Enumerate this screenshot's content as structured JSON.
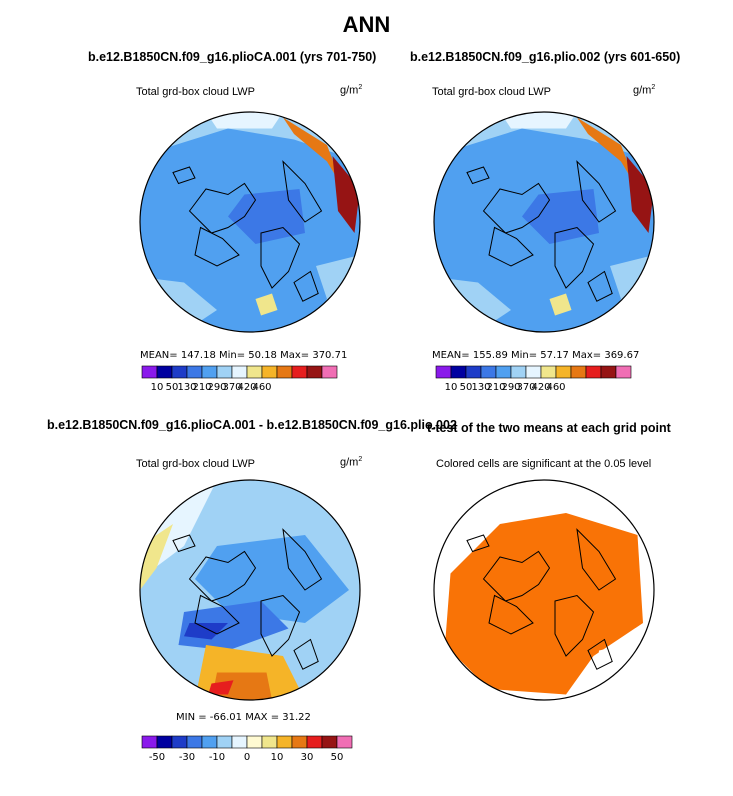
{
  "title": "ANN",
  "panels": [
    {
      "title": "b.e12.B1850CN.f09_g16.plioCA.001 (yrs 701-750)",
      "variable": "Total grd-box cloud LWP",
      "units": "g/m",
      "units_exp": "2",
      "stats": "MEAN= 147.18  Min= 50.18  Max= 370.71"
    },
    {
      "title": "b.e12.B1850CN.f09_g16.plio.002 (yrs 601-650)",
      "variable": "Total grd-box cloud LWP",
      "units": "g/m",
      "units_exp": "2",
      "stats": "MEAN= 155.89  Min= 57.17  Max= 369.67"
    },
    {
      "title": "b.e12.B1850CN.f09_g16.plioCA.001 - b.e12.B1850CN.f09_g16.plio.002",
      "variable": "Total grd-box cloud LWP",
      "units": "g/m",
      "units_exp": "2",
      "stats": "MIN = -66.01  MAX = 31.22"
    },
    {
      "title": "t-test of the two means at each grid point",
      "variable": "Colored cells are significant at the 0.05 level"
    }
  ],
  "chart_data": [
    {
      "type": "heatmap",
      "projection": "north-polar-stereographic",
      "field": "Total grd-box cloud LWP",
      "units": "g/m2",
      "stats": {
        "mean": 147.18,
        "min": 50.18,
        "max": 370.71
      },
      "colorbar": {
        "levels": [
          10,
          50,
          130,
          210,
          290,
          370,
          420,
          460
        ],
        "labels": [
          "10",
          "50",
          "130",
          "210",
          "290",
          "370",
          "420",
          "460"
        ]
      }
    },
    {
      "type": "heatmap",
      "projection": "north-polar-stereographic",
      "field": "Total grd-box cloud LWP",
      "units": "g/m2",
      "stats": {
        "mean": 155.89,
        "min": 57.17,
        "max": 369.67
      },
      "colorbar": {
        "levels": [
          10,
          50,
          130,
          210,
          290,
          370,
          420,
          460
        ],
        "labels": [
          "10",
          "50",
          "130",
          "210",
          "290",
          "370",
          "420",
          "460"
        ]
      }
    },
    {
      "type": "heatmap",
      "projection": "north-polar-stereographic",
      "field": "Total grd-box cloud LWP difference",
      "units": "g/m2",
      "stats": {
        "min": -66.01,
        "max": 31.22
      },
      "colorbar": {
        "levels": [
          -50,
          -40,
          -30,
          -20,
          -10,
          0,
          5,
          10,
          20,
          30,
          40,
          50
        ],
        "labels": [
          "-50",
          "-30",
          "-10",
          "0",
          "10",
          "30",
          "50"
        ]
      }
    },
    {
      "type": "heatmap",
      "projection": "north-polar-stereographic",
      "field": "t-test significance mask",
      "significance_level": 0.05
    }
  ],
  "colors": {
    "lwp_bar": [
      "#8a1aeb",
      "#0000a0",
      "#1e3cc8",
      "#3c78e6",
      "#50a0f0",
      "#a0d2f5",
      "#e6f5ff",
      "#f0e68c",
      "#f5b428",
      "#e67814",
      "#e61e1e",
      "#961414",
      "#f06eb4"
    ],
    "diff_bar": [
      "#8a1aeb",
      "#0000a0",
      "#1e3cc8",
      "#3c78e6",
      "#50a0f0",
      "#a0d2f5",
      "#e6f5ff",
      "#fffad2",
      "#f0e68c",
      "#f5b428",
      "#e67814",
      "#e61e1e",
      "#961414",
      "#f06eb4"
    ],
    "significant": "#f97306"
  }
}
